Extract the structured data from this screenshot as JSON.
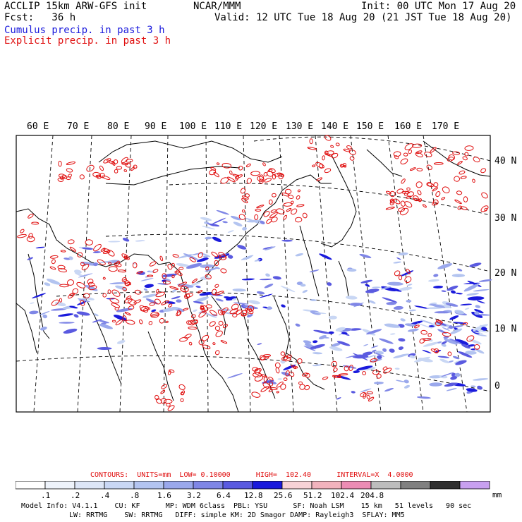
{
  "header": {
    "model": "ACCLIP 15km ARW-GFS init",
    "org": "NCAR/MMM",
    "init": "Init: 00 UTC Mon 17 Aug 20",
    "fcst": "Fcst:   36 h",
    "valid": "Valid: 12 UTC Tue 18 Aug 20 (21 JST Tue 18 Aug 20)",
    "cumulus": "Cumulus precip. in past 3 h",
    "explicit": "Explicit precip. in past 3 h",
    "cumulus_color": "#1a1adc",
    "explicit_color": "#e01010"
  },
  "map": {
    "lon_labels": [
      "60 E",
      "70 E",
      "80 E",
      "90 E",
      "100 E",
      "110 E",
      "120 E",
      "130 E",
      "140 E",
      "150 E",
      "160 E",
      "170 E"
    ],
    "lat_labels": [
      "40 N",
      "30 N",
      "20 N",
      "10 N",
      "0"
    ]
  },
  "contours": {
    "title": "CONTOURS:  UNITS=mm  LOW= 0.10000      HIGH=  102.40      INTERVAL=X  4.0000",
    "color": "#e01010"
  },
  "legend": {
    "unit": "mm",
    "colors": [
      "#ffffff",
      "#eef3fb",
      "#dde6f7",
      "#c9d7f4",
      "#b3c4f0",
      "#9aa8ec",
      "#7f86e6",
      "#5a5ae0",
      "#1a1adc",
      "#f7d2d6",
      "#f2b3bd",
      "#ec8cb4",
      "#bdbdbd",
      "#808080",
      "#303030",
      "#c8a0f0"
    ],
    "ticks": [
      ".1",
      ".2",
      ".4",
      ".8",
      "1.6",
      "3.2",
      "6.4",
      "12.8",
      "25.6",
      "51.2",
      "102.4",
      "204.8"
    ]
  },
  "footer": {
    "line1": "Model Info: V4.1.1    CU: KF      MP: WDM 6class  PBL: YSU      SF: Noah LSM    15 km   51 levels   90 sec",
    "line2": "LW: RRTMG    SW: RRTMG   DIFF: simple KM: 2D Smagor DAMP: Rayleigh3  SFLAY: MM5"
  }
}
